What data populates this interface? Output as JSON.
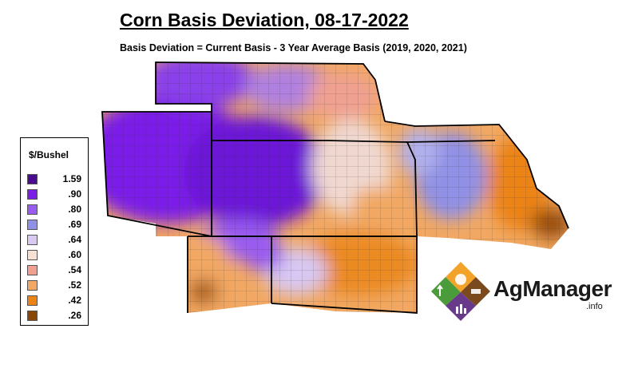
{
  "title": "Corn Basis Deviation, 08-17-2022",
  "subtitle": "Basis Deviation = Current Basis - 3 Year Average Basis (2019, 2020, 2021)",
  "legend": {
    "title": "$/Bushel",
    "items": [
      {
        "label": "1.59",
        "color": "#4b0c8f"
      },
      {
        "label": ".90",
        "color": "#7b1fe8"
      },
      {
        "label": ".80",
        "color": "#9a5cf0"
      },
      {
        "label": ".69",
        "color": "#9090e6"
      },
      {
        "label": ".64",
        "color": "#d8c8f2"
      },
      {
        "label": ".60",
        "color": "#f6e0d4"
      },
      {
        "label": ".54",
        "color": "#f0a090"
      },
      {
        "label": ".52",
        "color": "#f2a862"
      },
      {
        "label": ".42",
        "color": "#ec8314"
      },
      {
        "label": ".26",
        "color": "#8a4606"
      }
    ]
  },
  "logo": {
    "name": "AgManager",
    "suffix": ".info"
  }
}
